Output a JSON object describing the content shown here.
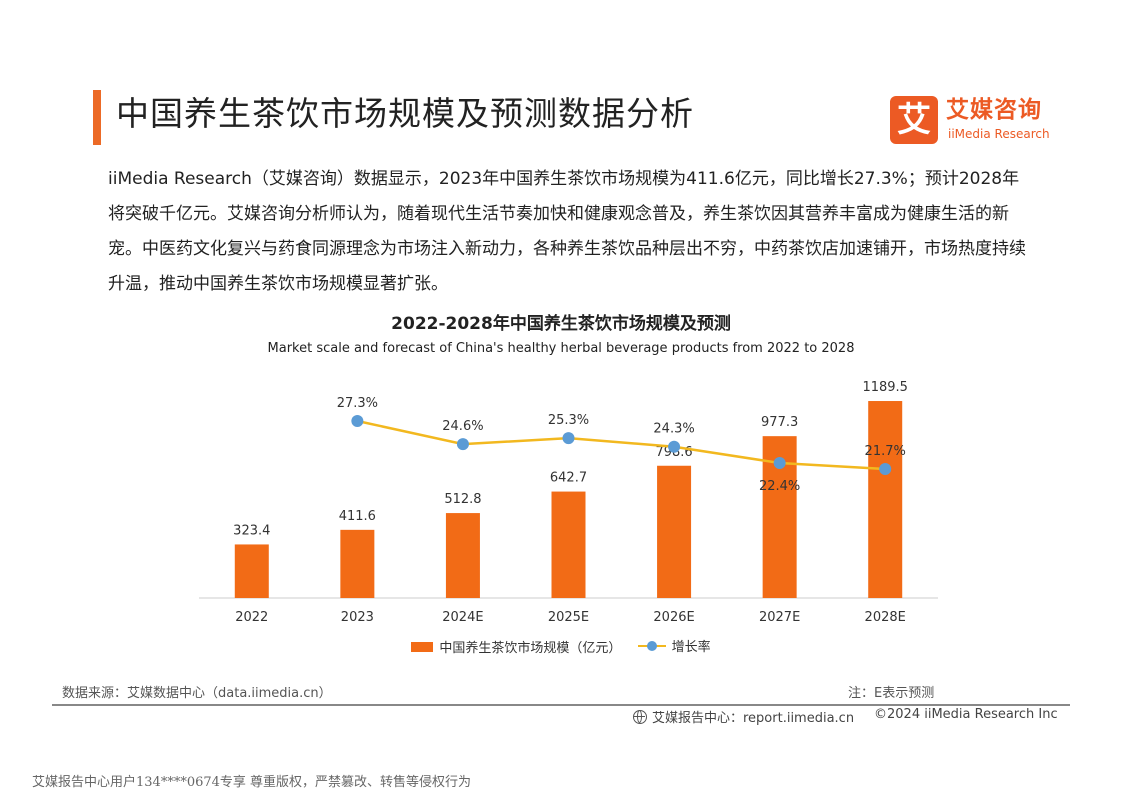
{
  "header": {
    "title": "中国养生茶饮市场规模及预测数据分析",
    "logo": {
      "cn": "艾媒咨询",
      "en": "iiMedia Research",
      "mark": "艾"
    }
  },
  "body": {
    "paragraph": "iiMedia Research（艾媒咨询）数据显示，2023年中国养生茶饮市场规模为411.6亿元，同比增长27.3%；预计2028年将突破千亿元。艾媒咨询分析师认为，随着现代生活节奏加快和健康观念普及，养生茶饮因其营养丰富成为健康生活的新宠。中医药文化复兴与药食同源理念为市场注入新动力，各种养生茶饮品种层出不穷，中药茶饮店加速铺开，市场热度持续升温，推动中国养生茶饮市场规模显著扩张。"
  },
  "chart_data": {
    "type": "bar",
    "title": "2022-2028年中国养生茶饮市场规模及预测",
    "subtitle": "Market scale and forecast of China's healthy herbal beverage products from 2022 to 2028",
    "categories": [
      "2022",
      "2023",
      "2024E",
      "2025E",
      "2026E",
      "2027E",
      "2028E"
    ],
    "series": [
      {
        "name": "中国养生茶饮市场规模（亿元）",
        "type": "bar",
        "color": "#f26b16",
        "values": [
          323.4,
          411.6,
          512.8,
          642.7,
          798.6,
          977.3,
          1189.5
        ],
        "labels": [
          "323.4",
          "411.6",
          "512.8",
          "642.7",
          "798.6",
          "977.3",
          "1189.5"
        ]
      },
      {
        "name": "增长率",
        "type": "line",
        "color": "#f2b81f",
        "marker_color": "#5b9bd5",
        "values": [
          null,
          27.3,
          24.6,
          25.3,
          24.3,
          22.4,
          21.7
        ],
        "labels": [
          null,
          "27.3%",
          "24.6%",
          "25.3%",
          "24.3%",
          "22.4%",
          "21.7%"
        ]
      }
    ],
    "ylim": [
      0,
      1250
    ],
    "y2lim": [
      0,
      40
    ],
    "grid": false,
    "legend": "bottom"
  },
  "footer": {
    "source": "数据来源：艾媒数据中心（data.iimedia.cn）",
    "note": "注：E表示预测",
    "site": "艾媒报告中心：report.iimedia.cn",
    "copyright": "©2024  iiMedia Research  Inc",
    "watermark": "艾媒报告中心用户134****0674专享 尊重版权，严禁篡改、转售等侵权行为"
  }
}
